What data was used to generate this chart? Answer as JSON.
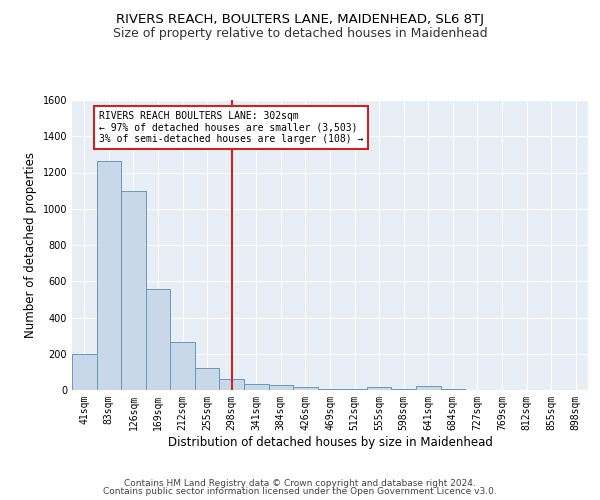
{
  "title": "RIVERS REACH, BOULTERS LANE, MAIDENHEAD, SL6 8TJ",
  "subtitle": "Size of property relative to detached houses in Maidenhead",
  "xlabel": "Distribution of detached houses by size in Maidenhead",
  "ylabel": "Number of detached properties",
  "bar_color": "#c8d8e8",
  "bar_edge_color": "#6699bb",
  "background_color": "#e8eef5",
  "grid_color": "white",
  "categories": [
    "41sqm",
    "83sqm",
    "126sqm",
    "169sqm",
    "212sqm",
    "255sqm",
    "298sqm",
    "341sqm",
    "384sqm",
    "426sqm",
    "469sqm",
    "512sqm",
    "555sqm",
    "598sqm",
    "641sqm",
    "684sqm",
    "727sqm",
    "769sqm",
    "812sqm",
    "855sqm",
    "898sqm"
  ],
  "values": [
    200,
    1265,
    1100,
    555,
    265,
    120,
    60,
    35,
    28,
    18,
    5,
    3,
    15,
    3,
    20,
    3,
    2,
    2,
    2,
    2,
    2
  ],
  "ylim": [
    0,
    1600
  ],
  "yticks": [
    0,
    200,
    400,
    600,
    800,
    1000,
    1200,
    1400,
    1600
  ],
  "vline_x": 6,
  "vline_color": "#cc2222",
  "annotation_box_text": "RIVERS REACH BOULTERS LANE: 302sqm\n← 97% of detached houses are smaller (3,503)\n3% of semi-detached houses are larger (108) →",
  "annotation_box_color": "#cc2222",
  "annotation_box_bg": "white",
  "footer_line1": "Contains HM Land Registry data © Crown copyright and database right 2024.",
  "footer_line2": "Contains public sector information licensed under the Open Government Licence v3.0.",
  "title_fontsize": 9.5,
  "subtitle_fontsize": 9,
  "tick_fontsize": 7,
  "ylabel_fontsize": 8.5,
  "xlabel_fontsize": 8.5,
  "footer_fontsize": 6.5
}
